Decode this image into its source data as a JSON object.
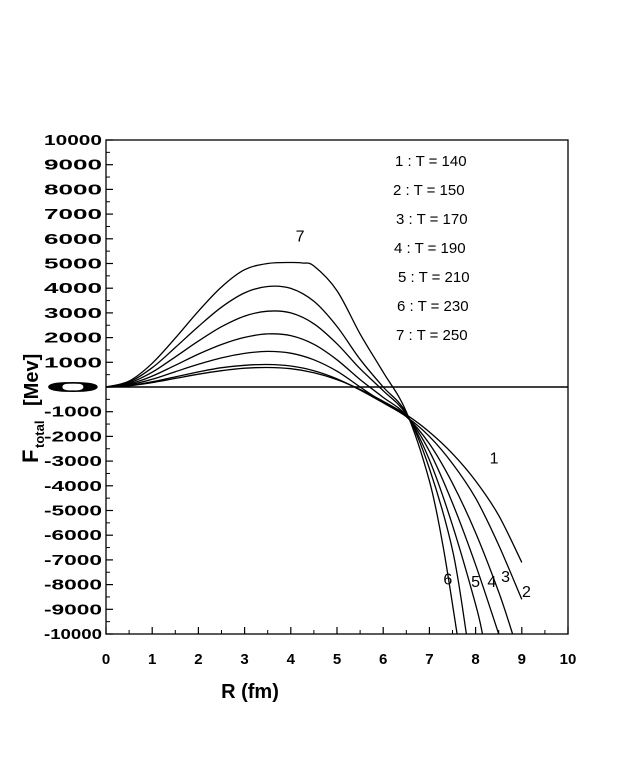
{
  "chart_data": {
    "type": "line",
    "title": "",
    "xlabel": "R (fm)",
    "ylabel_main": "F",
    "ylabel_sub": "total",
    "ylabel_unit": "[Mev]",
    "xlim": [
      0,
      10
    ],
    "ylim": [
      -10000,
      10000
    ],
    "xticks": [
      0,
      1,
      2,
      3,
      4,
      5,
      6,
      7,
      8,
      9,
      10
    ],
    "yticks": [
      10000,
      9000,
      8000,
      7000,
      6000,
      5000,
      4000,
      3000,
      2000,
      1000,
      0,
      -1000,
      -2000,
      -3000,
      -4000,
      -5000,
      -6000,
      -7000,
      -8000,
      -9000,
      -10000
    ],
    "grid": false,
    "zero_line": true,
    "legend": [
      "1 : T = 140",
      "2 : T = 150",
      "3 : T = 170",
      "4 : T = 190",
      "5 : T = 210",
      "6 : T = 230",
      "7 : T = 250"
    ],
    "series": [
      {
        "name": "1",
        "T": 140,
        "x": [
          0,
          0.5,
          1,
          1.5,
          2,
          2.5,
          3,
          3.5,
          4,
          4.5,
          5,
          5.5,
          6,
          6.5,
          7,
          7.5,
          8,
          8.5,
          9
        ],
        "y": [
          0,
          50,
          180,
          350,
          520,
          660,
          760,
          790,
          740,
          580,
          300,
          -100,
          -580,
          -1120,
          -1820,
          -2700,
          -3800,
          -5200,
          -7100
        ]
      },
      {
        "name": "2",
        "T": 150,
        "x": [
          0,
          0.5,
          1,
          1.5,
          2,
          2.5,
          3,
          3.5,
          4,
          4.5,
          5,
          5.5,
          6,
          6.5,
          7,
          7.5,
          8,
          8.5,
          9
        ],
        "y": [
          0,
          60,
          210,
          410,
          610,
          780,
          880,
          910,
          850,
          660,
          330,
          -120,
          -640,
          -1200,
          -2000,
          -3100,
          -4500,
          -6400,
          -8600
        ]
      },
      {
        "name": "3",
        "T": 170,
        "x": [
          0,
          0.5,
          1,
          1.5,
          2,
          2.5,
          3,
          3.5,
          4,
          4.5,
          5,
          5.5,
          6,
          6.5,
          7,
          7.5,
          8,
          8.5,
          8.8
        ],
        "y": [
          0,
          90,
          310,
          620,
          920,
          1180,
          1360,
          1440,
          1370,
          1100,
          640,
          0,
          -620,
          -1200,
          -2300,
          -3900,
          -5900,
          -8300,
          -10000
        ]
      },
      {
        "name": "4",
        "T": 190,
        "x": [
          0,
          0.5,
          1,
          1.5,
          2,
          2.5,
          3,
          3.5,
          4,
          4.5,
          5,
          5.5,
          6,
          6.5,
          7,
          7.5,
          8,
          8.5
        ],
        "y": [
          0,
          120,
          440,
          880,
          1330,
          1720,
          2010,
          2150,
          2080,
          1730,
          1100,
          300,
          -420,
          -1150,
          -2600,
          -4700,
          -7200,
          -10000
        ]
      },
      {
        "name": "5",
        "T": 210,
        "x": [
          0,
          0.5,
          1,
          1.5,
          2,
          2.5,
          3,
          3.5,
          4,
          4.5,
          5,
          5.5,
          6,
          6.5,
          7,
          7.5,
          8,
          8.15
        ],
        "y": [
          0,
          160,
          600,
          1220,
          1860,
          2440,
          2870,
          3070,
          3000,
          2560,
          1750,
          740,
          -150,
          -1100,
          -2950,
          -5600,
          -8800,
          -10000
        ]
      },
      {
        "name": "6",
        "T": 230,
        "x": [
          0,
          0.5,
          1,
          1.5,
          2,
          2.5,
          3,
          3.5,
          4,
          4.5,
          5,
          5.5,
          6,
          6.5,
          7,
          7.5,
          7.8
        ],
        "y": [
          0,
          200,
          780,
          1600,
          2450,
          3230,
          3810,
          4070,
          3990,
          3470,
          2450,
          1120,
          0,
          -1050,
          -3300,
          -6600,
          -10000
        ]
      },
      {
        "name": "7",
        "T": 250,
        "x": [
          0,
          0.5,
          1,
          1.5,
          2,
          2.5,
          3,
          3.5,
          4,
          4.25,
          4.5,
          5,
          5.5,
          6,
          6.5,
          7,
          7.3,
          7.6
        ],
        "y": [
          0,
          240,
          960,
          1980,
          3070,
          4050,
          4750,
          5000,
          5040,
          5020,
          4900,
          3900,
          2150,
          600,
          -1000,
          -3800,
          -6500,
          -10000
        ]
      }
    ],
    "curve_labels": [
      {
        "text": "7",
        "x": 4.2,
        "y": 5900
      },
      {
        "text": "1",
        "x": 8.4,
        "y": -3100
      },
      {
        "text": "6",
        "x": 7.4,
        "y": -8000
      },
      {
        "text": "5",
        "x": 8.0,
        "y": -8100
      },
      {
        "text": "4",
        "x": 8.35,
        "y": -8100
      },
      {
        "text": "3",
        "x": 8.65,
        "y": -7900
      },
      {
        "text": "2",
        "x": 9.1,
        "y": -8500
      }
    ]
  }
}
